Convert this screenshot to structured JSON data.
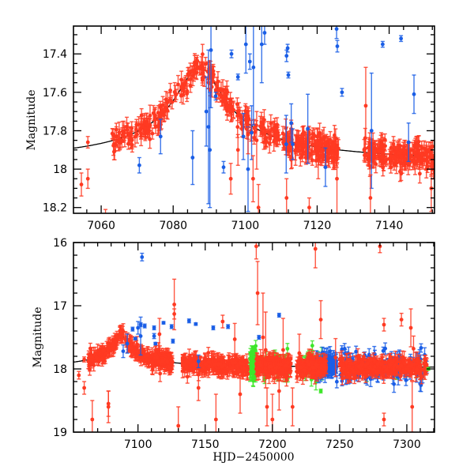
{
  "chart_data": [
    {
      "type": "scatter",
      "panel": "top",
      "title": "",
      "xlabel": "",
      "ylabel": "Magnitude",
      "xlim": [
        7052.3,
        7152.6
      ],
      "ylim": [
        18.23,
        17.255
      ],
      "y_inverted": true,
      "xticks": [
        7060,
        7080,
        7100,
        7120,
        7140
      ],
      "xtick_labels": [
        "7060",
        "7080",
        "7100",
        "7120",
        "7140"
      ],
      "x_minor_step": 4,
      "yticks": [
        17.4,
        17.6,
        17.8,
        18,
        18.2
      ],
      "ytick_labels": [
        "17.4",
        "17.6",
        "17.8",
        "18",
        "18.2"
      ],
      "y_minor_step": 0.05,
      "grid": false,
      "model_curve": {
        "name": "microlensing model",
        "color": "#000000",
        "baseline": 17.985,
        "peak_time": 7087.3,
        "peak_mag": 17.47,
        "width_days": 6.5
      },
      "series": [
        {
          "name": "red-band",
          "color": "#ff3a22",
          "dense_segments": [
            {
              "x_from": 7063,
              "x_to": 7110,
              "follows_model": true,
              "scatter": 0.03,
              "n": 260
            },
            {
              "x_from": 7110,
              "x_to": 7126,
              "follows_model": true,
              "scatter": 0.035,
              "n": 170
            },
            {
              "x_from": 7133,
              "x_to": 7152.5,
              "follows_model": true,
              "scatter": 0.035,
              "n": 190
            }
          ],
          "points": [
            {
              "x": 7054.5,
              "y": 18.08,
              "err": 0.06
            },
            {
              "x": 7056.3,
              "y": 17.86,
              "err": 0.03
            },
            {
              "x": 7056.3,
              "y": 18.05,
              "err": 0.05
            },
            {
              "x": 7061.2,
              "y": 18.26,
              "err": 0.05
            },
            {
              "x": 7096.0,
              "y": 18.05,
              "err": 0.08
            },
            {
              "x": 7098.0,
              "y": 17.9,
              "err": 0.08
            },
            {
              "x": 7100.8,
              "y": 17.82,
              "err": 0.1
            },
            {
              "x": 7102.2,
              "y": 18.05,
              "err": 0.12
            },
            {
              "x": 7103.2,
              "y": 17.85,
              "err": 0.15
            },
            {
              "x": 7103.7,
              "y": 18.2,
              "err": 0.12
            },
            {
              "x": 7111.5,
              "y": 18.15,
              "err": 0.1
            },
            {
              "x": 7114.0,
              "y": 17.9,
              "err": 0.08
            },
            {
              "x": 7117.8,
              "y": 18.2,
              "err": 0.05
            },
            {
              "x": 7120.3,
              "y": 17.95,
              "err": 0.1
            },
            {
              "x": 7125.5,
              "y": 18.05,
              "err": 0.18
            },
            {
              "x": 7133.5,
              "y": 17.67,
              "err": 0.2
            },
            {
              "x": 7134.8,
              "y": 18.15,
              "err": 0.12
            },
            {
              "x": 7141.2,
              "y": 17.87,
              "err": 0.04
            },
            {
              "x": 7151.7,
              "y": 18.1,
              "err": 0.12
            }
          ]
        },
        {
          "name": "blue-band",
          "color": "#1a5ee6",
          "points": [
            {
              "x": 7070.6,
              "y": 17.98,
              "err": 0.04
            },
            {
              "x": 7076.5,
              "y": 17.83,
              "err": 0.09
            },
            {
              "x": 7085.4,
              "y": 17.94,
              "err": 0.14
            },
            {
              "x": 7089.2,
              "y": 17.7,
              "err": 0.18
            },
            {
              "x": 7089.8,
              "y": 17.78,
              "err": 0.4
            },
            {
              "x": 7090.2,
              "y": 17.9,
              "err": 0.3
            },
            {
              "x": 7090.5,
              "y": 17.38,
              "err": 0.3
            },
            {
              "x": 7091.8,
              "y": 17.62,
              "err": 0.02
            },
            {
              "x": 7094.0,
              "y": 17.99,
              "err": 0.03
            },
            {
              "x": 7096.2,
              "y": 17.4,
              "err": 0.02
            },
            {
              "x": 7098.0,
              "y": 17.52,
              "err": 0.015
            },
            {
              "x": 7099.5,
              "y": 17.83,
              "err": 0.12
            },
            {
              "x": 7100.2,
              "y": 17.35,
              "err": 0.15
            },
            {
              "x": 7100.8,
              "y": 18.0,
              "err": 0.22
            },
            {
              "x": 7101.3,
              "y": 17.44,
              "err": 0.04
            },
            {
              "x": 7101.8,
              "y": 17.81,
              "err": 0.14
            },
            {
              "x": 7102.3,
              "y": 17.47,
              "err": 0.3
            },
            {
              "x": 7104.6,
              "y": 17.35,
              "err": 0.2
            },
            {
              "x": 7105.4,
              "y": 17.29,
              "err": 0.06
            },
            {
              "x": 7111.8,
              "y": 17.37,
              "err": 0.02
            },
            {
              "x": 7111.5,
              "y": 17.41,
              "err": 0.03
            },
            {
              "x": 7112.0,
              "y": 17.51,
              "err": 0.015
            },
            {
              "x": 7111.4,
              "y": 17.87,
              "err": 0.15
            },
            {
              "x": 7112.8,
              "y": 17.76,
              "err": 0.1
            },
            {
              "x": 7113.2,
              "y": 17.87,
              "err": 0.08
            },
            {
              "x": 7117.4,
              "y": 17.79,
              "err": 0.18
            },
            {
              "x": 7122.3,
              "y": 17.99,
              "err": 0.1
            },
            {
              "x": 7125.6,
              "y": 17.36,
              "err": 0.03
            },
            {
              "x": 7125.4,
              "y": 17.27,
              "err": 0.05
            },
            {
              "x": 7126.9,
              "y": 17.6,
              "err": 0.02
            },
            {
              "x": 7135.1,
              "y": 17.8,
              "err": 0.3
            },
            {
              "x": 7138.2,
              "y": 17.35,
              "err": 0.015
            },
            {
              "x": 7143.3,
              "y": 17.32,
              "err": 0.015
            },
            {
              "x": 7145.4,
              "y": 17.86,
              "err": 0.1
            },
            {
              "x": 7146.9,
              "y": 17.61,
              "err": 0.1
            }
          ]
        }
      ]
    },
    {
      "type": "scatter",
      "panel": "bottom",
      "title": "",
      "xlabel": "HJD−2450000",
      "ylabel": "Magnitude",
      "xlim": [
        7052,
        7320.6
      ],
      "ylim": [
        19,
        16
      ],
      "y_inverted": true,
      "xticks": [
        7100,
        7150,
        7200,
        7250,
        7300
      ],
      "xtick_labels": [
        "7100",
        "7150",
        "7200",
        "7250",
        "7300"
      ],
      "x_minor_step": 10,
      "yticks": [
        16,
        17,
        18,
        19
      ],
      "ytick_labels": [
        "16",
        "17",
        "18",
        "19"
      ],
      "y_minor_step": 0.2,
      "grid": false,
      "model_curve": {
        "name": "microlensing model",
        "color": "#000000",
        "baseline": 17.985,
        "peak_time": 7087.3,
        "peak_mag": 17.47,
        "width_days": 6.5
      },
      "series": [
        {
          "name": "red-band",
          "color": "#ff3a22",
          "dense_segments": [
            {
              "x_from": 7063,
              "x_to": 7110,
              "follows_model": true,
              "scatter": 0.05,
              "n": 180
            },
            {
              "x_from": 7110,
              "x_to": 7126,
              "follows_model": true,
              "scatter": 0.06,
              "n": 110
            },
            {
              "x_from": 7133,
              "x_to": 7182,
              "follows_model": true,
              "scatter": 0.06,
              "n": 260
            },
            {
              "x_from": 7188,
              "x_to": 7214,
              "follows_model": true,
              "scatter": 0.07,
              "n": 180
            },
            {
              "x_from": 7218,
              "x_to": 7240,
              "follows_model": true,
              "scatter": 0.07,
              "n": 160
            },
            {
              "x_from": 7250,
              "x_to": 7315,
              "follows_model": true,
              "scatter": 0.06,
              "n": 300
            }
          ],
          "points": [
            {
              "x": 7056,
              "y": 18.1,
              "err": 0.06
            },
            {
              "x": 7060,
              "y": 17.85,
              "err": 0.04
            },
            {
              "x": 7060,
              "y": 18.3,
              "err": 0.1
            },
            {
              "x": 7066,
              "y": 18.8,
              "err": 0.3
            },
            {
              "x": 7078,
              "y": 18.6,
              "err": 0.25
            },
            {
              "x": 7078,
              "y": 18.55,
              "err": 0.2
            },
            {
              "x": 7116,
              "y": 17.45,
              "err": 0.25
            },
            {
              "x": 7127,
              "y": 17.13,
              "err": 0.08
            },
            {
              "x": 7127,
              "y": 16.98,
              "err": 0.4
            },
            {
              "x": 7130,
              "y": 18.9,
              "err": 0.3
            },
            {
              "x": 7145,
              "y": 18.3,
              "err": 0.2
            },
            {
              "x": 7158,
              "y": 18.8,
              "err": 0.4
            },
            {
              "x": 7163,
              "y": 17.25,
              "err": 0.1
            },
            {
              "x": 7172,
              "y": 17.53,
              "err": 0.25
            },
            {
              "x": 7176,
              "y": 18.4,
              "err": 0.3
            },
            {
              "x": 7188,
              "y": 16.06,
              "err": 0.2
            },
            {
              "x": 7189,
              "y": 16.8,
              "err": 0.5
            },
            {
              "x": 7193,
              "y": 17.5,
              "err": 0.7
            },
            {
              "x": 7195,
              "y": 17.7,
              "err": 0.6
            },
            {
              "x": 7196,
              "y": 18.6,
              "err": 0.3
            },
            {
              "x": 7200,
              "y": 18.8,
              "err": 0.4
            },
            {
              "x": 7205,
              "y": 18.35,
              "err": 0.3
            },
            {
              "x": 7208,
              "y": 17.7,
              "err": 0.5
            },
            {
              "x": 7215,
              "y": 18.6,
              "err": 0.3
            },
            {
              "x": 7220,
              "y": 17.75,
              "err": 0.3
            },
            {
              "x": 7232,
              "y": 16.1,
              "err": 0.3
            },
            {
              "x": 7236,
              "y": 17.22,
              "err": 0.3
            },
            {
              "x": 7247,
              "y": 17.82,
              "err": 0.3
            },
            {
              "x": 7280,
              "y": 16.06,
              "err": 0.1
            },
            {
              "x": 7283,
              "y": 17.3,
              "err": 0.1
            },
            {
              "x": 7283,
              "y": 18.8,
              "err": 0.1
            },
            {
              "x": 7296,
              "y": 17.22,
              "err": 0.1
            },
            {
              "x": 7303,
              "y": 17.35,
              "err": 0.3
            },
            {
              "x": 7305,
              "y": 17.68,
              "err": 0.2
            },
            {
              "x": 7304,
              "y": 18.6,
              "err": 0.4
            }
          ]
        },
        {
          "name": "blue-band",
          "color": "#1a5ee6",
          "dense_segments": [
            {
              "x_from": 7232,
              "x_to": 7248,
              "follows_model": true,
              "scatter": 0.1,
              "n": 90
            },
            {
              "x_from": 7250,
              "x_to": 7315,
              "follows_model": true,
              "scatter": 0.12,
              "n": 120
            }
          ],
          "points": [
            {
              "x": 7089,
              "y": 17.72,
              "err": 0.1
            },
            {
              "x": 7092,
              "y": 17.6,
              "err": 0.15
            },
            {
              "x": 7096,
              "y": 17.37,
              "err": 0.03
            },
            {
              "x": 7098,
              "y": 17.52,
              "err": 0.02
            },
            {
              "x": 7100,
              "y": 17.35,
              "err": 0.1
            },
            {
              "x": 7102,
              "y": 17.48,
              "err": 0.3
            },
            {
              "x": 7102,
              "y": 17.3,
              "err": 0.03
            },
            {
              "x": 7105,
              "y": 17.32,
              "err": 0.03
            },
            {
              "x": 7112,
              "y": 17.35,
              "err": 0.03
            },
            {
              "x": 7112,
              "y": 17.48,
              "err": 0.04
            },
            {
              "x": 7113,
              "y": 17.6,
              "err": 0.02
            },
            {
              "x": 7119,
              "y": 17.27,
              "err": 0.02
            },
            {
              "x": 7125,
              "y": 17.33,
              "err": 0.03
            },
            {
              "x": 7126,
              "y": 17.56,
              "err": 0.03
            },
            {
              "x": 7138,
              "y": 17.24,
              "err": 0.03
            },
            {
              "x": 7143,
              "y": 17.29,
              "err": 0.02
            },
            {
              "x": 7145,
              "y": 17.88,
              "err": 0.1
            },
            {
              "x": 7103,
              "y": 16.23,
              "err": 0.06
            },
            {
              "x": 7156,
              "y": 17.35,
              "err": 0.03
            },
            {
              "x": 7167,
              "y": 17.33,
              "err": 0.03
            },
            {
              "x": 7190,
              "y": 17.5,
              "err": 0.03
            },
            {
              "x": 7205,
              "y": 17.15,
              "err": 0.03
            }
          ]
        },
        {
          "name": "green-band",
          "color": "#3ee62a",
          "dense_segments": [
            {
              "x_from": 7183,
              "x_to": 7188,
              "follows_model": true,
              "scatter": 0.15,
              "n": 50
            },
            {
              "x_from": 7194,
              "x_to": 7212,
              "follows_model": true,
              "scatter": 0.1,
              "n": 45
            },
            {
              "x_from": 7222,
              "x_to": 7237,
              "follows_model": true,
              "scatter": 0.12,
              "n": 40
            },
            {
              "x_from": 7265,
              "x_to": 7316,
              "follows_model": true,
              "scatter": 0.08,
              "n": 35
            }
          ],
          "points": [
            {
              "x": 7236,
              "y": 18.35,
              "err": 0.03
            },
            {
              "x": 7316,
              "y": 18.0,
              "err": 0.02
            }
          ]
        }
      ]
    }
  ]
}
